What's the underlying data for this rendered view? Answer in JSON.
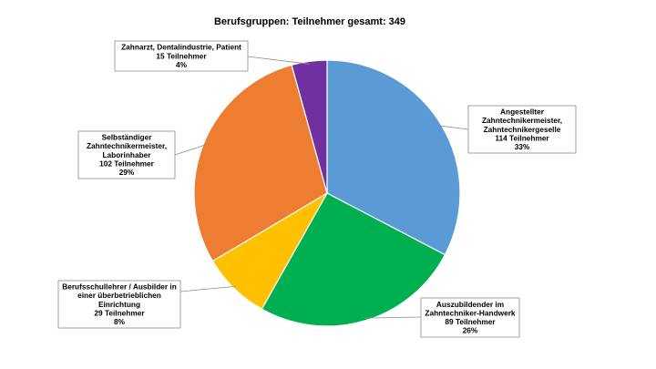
{
  "chart_data": {
    "type": "pie",
    "title": "Berufsgruppen: Teilnehmer gesamt: 349",
    "legend": "none",
    "slices": [
      {
        "lines": [
          "Angestellter",
          "Zahntechnikermeister,",
          "Zahntechnikergeselle",
          "114 Teilnehmer",
          "33%"
        ],
        "value": 114,
        "percent": 33,
        "color": "#5B9BD5"
      },
      {
        "lines": [
          "Auszubildender im",
          "Zahntechniker-Handwerk",
          "89 Teilnehmer",
          "26%"
        ],
        "value": 89,
        "percent": 26,
        "color": "#00B050"
      },
      {
        "lines": [
          "Berufsschullehrer / Ausbilder in",
          "einer überbetrieblichen",
          "Einrichtung",
          "29 Teilnehmer",
          "8%"
        ],
        "value": 29,
        "percent": 8,
        "color": "#FFC000"
      },
      {
        "lines": [
          "Selbständiger",
          "Zahntechnikermeister,",
          "Laborinhaber",
          "102 Teilnehmer",
          "29%"
        ],
        "value": 102,
        "percent": 29,
        "color": "#ED7D31"
      },
      {
        "lines": [
          "Zahnarzt, Dentalindustrie, Patient",
          "15 Teilnehmer",
          "4%"
        ],
        "value": 15,
        "percent": 4,
        "color": "#7030A0"
      }
    ]
  }
}
